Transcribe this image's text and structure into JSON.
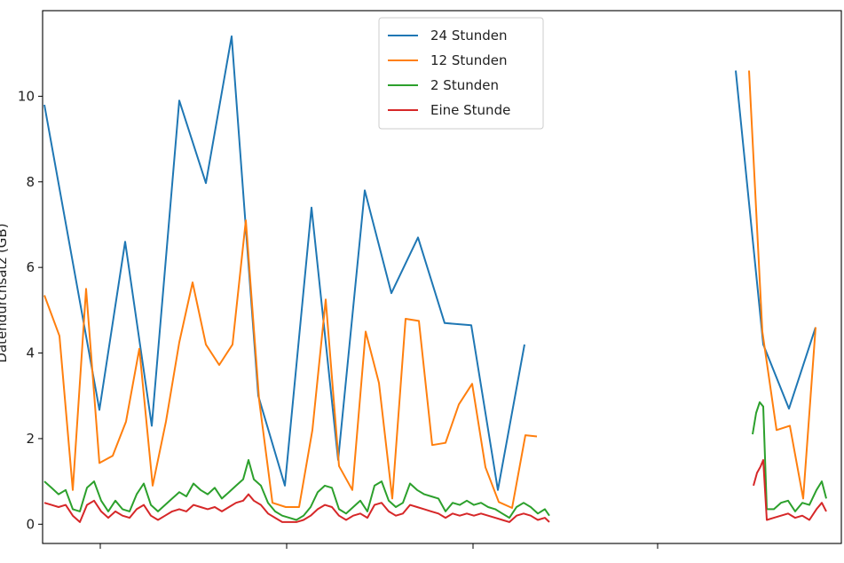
{
  "chart_data": {
    "type": "line",
    "title": "",
    "xlabel": "",
    "ylabel": "Datendurchsatz (GB)",
    "ylim": [
      -0.45,
      12.0
    ],
    "yticks": [
      0,
      2,
      4,
      6,
      8,
      10
    ],
    "xlim": [
      0,
      951
    ],
    "xticks": [
      113,
      323,
      533,
      741
    ],
    "grid": false,
    "legend_position": "upper center",
    "series": [
      {
        "name": "24 Stunden",
        "color": "#1f77b4",
        "segments": [
          [
            [
              50,
              9.8
            ],
            [
              112,
              2.67
            ],
            [
              141,
              6.6
            ],
            [
              171,
              2.3
            ],
            [
              202,
              9.9
            ],
            [
              232,
              7.97
            ],
            [
              261,
              11.4
            ],
            [
              291,
              3.0
            ],
            [
              321,
              0.9
            ],
            [
              351,
              7.4
            ],
            [
              381,
              1.5
            ],
            [
              411,
              7.8
            ],
            [
              441,
              5.4
            ],
            [
              471,
              6.7
            ],
            [
              501,
              4.7
            ],
            [
              531,
              4.65
            ],
            [
              561,
              0.8
            ],
            [
              591,
              4.2
            ]
          ],
          [
            [
              829,
              10.6
            ],
            [
              860,
              4.2
            ],
            [
              889,
              2.7
            ],
            [
              919,
              4.6
            ]
          ]
        ]
      },
      {
        "name": "12 Stunden",
        "color": "#ff7f0e",
        "segments": [
          [
            [
              50,
              5.35
            ],
            [
              67,
              4.4
            ],
            [
              82,
              0.8
            ],
            [
              97,
              5.5
            ],
            [
              112,
              1.43
            ],
            [
              127,
              1.6
            ],
            [
              142,
              2.4
            ],
            [
              157,
              4.1
            ],
            [
              172,
              0.9
            ],
            [
              187,
              2.4
            ],
            [
              202,
              4.25
            ],
            [
              217,
              5.65
            ],
            [
              232,
              4.2
            ],
            [
              247,
              3.72
            ],
            [
              262,
              4.2
            ],
            [
              277,
              7.1
            ],
            [
              292,
              2.9
            ],
            [
              307,
              0.5
            ],
            [
              322,
              0.4
            ],
            [
              337,
              0.4
            ],
            [
              352,
              2.2
            ],
            [
              367,
              5.25
            ],
            [
              382,
              1.36
            ],
            [
              397,
              0.8
            ],
            [
              412,
              4.5
            ],
            [
              427,
              3.3
            ],
            [
              442,
              0.6
            ],
            [
              457,
              4.8
            ],
            [
              472,
              4.75
            ],
            [
              487,
              1.85
            ],
            [
              502,
              1.9
            ],
            [
              517,
              2.8
            ],
            [
              532,
              3.28
            ],
            [
              547,
              1.33
            ],
            [
              562,
              0.52
            ],
            [
              577,
              0.38
            ],
            [
              592,
              2.08
            ],
            [
              605,
              2.05
            ]
          ],
          [
            [
              844,
              10.6
            ],
            [
              859,
              4.5
            ],
            [
              875,
              2.2
            ],
            [
              890,
              2.3
            ],
            [
              905,
              0.6
            ],
            [
              919,
              4.6
            ]
          ]
        ]
      },
      {
        "name": "2 Stunden",
        "color": "#2ca02c",
        "segments": [
          [
            [
              50,
              1.0
            ],
            [
              58,
              0.85
            ],
            [
              66,
              0.7
            ],
            [
              74,
              0.8
            ],
            [
              82,
              0.35
            ],
            [
              90,
              0.3
            ],
            [
              98,
              0.85
            ],
            [
              106,
              1.0
            ],
            [
              114,
              0.55
            ],
            [
              122,
              0.3
            ],
            [
              130,
              0.55
            ],
            [
              138,
              0.35
            ],
            [
              146,
              0.3
            ],
            [
              154,
              0.7
            ],
            [
              162,
              0.95
            ],
            [
              170,
              0.45
            ],
            [
              178,
              0.3
            ],
            [
              186,
              0.45
            ],
            [
              194,
              0.6
            ],
            [
              202,
              0.75
            ],
            [
              210,
              0.65
            ],
            [
              218,
              0.95
            ],
            [
              226,
              0.8
            ],
            [
              234,
              0.7
            ],
            [
              242,
              0.85
            ],
            [
              250,
              0.6
            ],
            [
              258,
              0.75
            ],
            [
              266,
              0.9
            ],
            [
              274,
              1.05
            ],
            [
              280,
              1.5
            ],
            [
              286,
              1.05
            ],
            [
              294,
              0.9
            ],
            [
              302,
              0.5
            ],
            [
              310,
              0.3
            ],
            [
              318,
              0.2
            ],
            [
              326,
              0.15
            ],
            [
              334,
              0.1
            ],
            [
              342,
              0.2
            ],
            [
              350,
              0.4
            ],
            [
              358,
              0.75
            ],
            [
              366,
              0.9
            ],
            [
              374,
              0.85
            ],
            [
              382,
              0.35
            ],
            [
              390,
              0.25
            ],
            [
              398,
              0.4
            ],
            [
              406,
              0.55
            ],
            [
              414,
              0.3
            ],
            [
              422,
              0.9
            ],
            [
              430,
              1.0
            ],
            [
              438,
              0.55
            ],
            [
              446,
              0.4
            ],
            [
              454,
              0.5
            ],
            [
              462,
              0.95
            ],
            [
              470,
              0.8
            ],
            [
              478,
              0.7
            ],
            [
              486,
              0.65
            ],
            [
              494,
              0.6
            ],
            [
              502,
              0.3
            ],
            [
              510,
              0.5
            ],
            [
              518,
              0.45
            ],
            [
              526,
              0.55
            ],
            [
              534,
              0.45
            ],
            [
              542,
              0.5
            ],
            [
              550,
              0.4
            ],
            [
              558,
              0.35
            ],
            [
              566,
              0.25
            ],
            [
              574,
              0.15
            ],
            [
              582,
              0.4
            ],
            [
              590,
              0.5
            ],
            [
              598,
              0.4
            ],
            [
              606,
              0.25
            ],
            [
              614,
              0.35
            ],
            [
              619,
              0.2
            ]
          ],
          [
            [
              848,
              2.1
            ],
            [
              852,
              2.6
            ],
            [
              856,
              2.85
            ],
            [
              860,
              2.75
            ],
            [
              864,
              0.35
            ],
            [
              872,
              0.35
            ],
            [
              880,
              0.5
            ],
            [
              888,
              0.55
            ],
            [
              896,
              0.3
            ],
            [
              904,
              0.5
            ],
            [
              912,
              0.45
            ],
            [
              920,
              0.8
            ],
            [
              926,
              1.0
            ],
            [
              931,
              0.6
            ]
          ]
        ]
      },
      {
        "name": "Eine Stunde",
        "color": "#d62728",
        "segments": [
          [
            [
              50,
              0.5
            ],
            [
              58,
              0.45
            ],
            [
              66,
              0.4
            ],
            [
              74,
              0.45
            ],
            [
              82,
              0.2
            ],
            [
              90,
              0.05
            ],
            [
              98,
              0.45
            ],
            [
              106,
              0.55
            ],
            [
              114,
              0.3
            ],
            [
              122,
              0.15
            ],
            [
              130,
              0.3
            ],
            [
              138,
              0.2
            ],
            [
              146,
              0.15
            ],
            [
              154,
              0.35
            ],
            [
              162,
              0.45
            ],
            [
              170,
              0.2
            ],
            [
              178,
              0.1
            ],
            [
              186,
              0.2
            ],
            [
              194,
              0.3
            ],
            [
              202,
              0.35
            ],
            [
              210,
              0.3
            ],
            [
              218,
              0.45
            ],
            [
              226,
              0.4
            ],
            [
              234,
              0.35
            ],
            [
              242,
              0.4
            ],
            [
              250,
              0.3
            ],
            [
              258,
              0.4
            ],
            [
              266,
              0.5
            ],
            [
              274,
              0.55
            ],
            [
              280,
              0.7
            ],
            [
              286,
              0.55
            ],
            [
              294,
              0.45
            ],
            [
              302,
              0.25
            ],
            [
              310,
              0.15
            ],
            [
              318,
              0.05
            ],
            [
              326,
              0.05
            ],
            [
              334,
              0.05
            ],
            [
              342,
              0.1
            ],
            [
              350,
              0.2
            ],
            [
              358,
              0.35
            ],
            [
              366,
              0.45
            ],
            [
              374,
              0.4
            ],
            [
              382,
              0.2
            ],
            [
              390,
              0.1
            ],
            [
              398,
              0.2
            ],
            [
              406,
              0.25
            ],
            [
              414,
              0.15
            ],
            [
              422,
              0.45
            ],
            [
              430,
              0.5
            ],
            [
              438,
              0.3
            ],
            [
              446,
              0.2
            ],
            [
              454,
              0.25
            ],
            [
              462,
              0.45
            ],
            [
              470,
              0.4
            ],
            [
              478,
              0.35
            ],
            [
              486,
              0.3
            ],
            [
              494,
              0.25
            ],
            [
              502,
              0.15
            ],
            [
              510,
              0.25
            ],
            [
              518,
              0.2
            ],
            [
              526,
              0.25
            ],
            [
              534,
              0.2
            ],
            [
              542,
              0.25
            ],
            [
              550,
              0.2
            ],
            [
              558,
              0.15
            ],
            [
              566,
              0.1
            ],
            [
              574,
              0.05
            ],
            [
              582,
              0.2
            ],
            [
              590,
              0.25
            ],
            [
              598,
              0.2
            ],
            [
              606,
              0.1
            ],
            [
              614,
              0.15
            ],
            [
              619,
              0.05
            ]
          ],
          [
            [
              849,
              0.9
            ],
            [
              853,
              1.2
            ],
            [
              857,
              1.35
            ],
            [
              860,
              1.5
            ],
            [
              864,
              0.1
            ],
            [
              872,
              0.15
            ],
            [
              880,
              0.2
            ],
            [
              888,
              0.25
            ],
            [
              896,
              0.15
            ],
            [
              904,
              0.2
            ],
            [
              912,
              0.1
            ],
            [
              920,
              0.35
            ],
            [
              926,
              0.5
            ],
            [
              931,
              0.3
            ]
          ]
        ]
      }
    ]
  }
}
